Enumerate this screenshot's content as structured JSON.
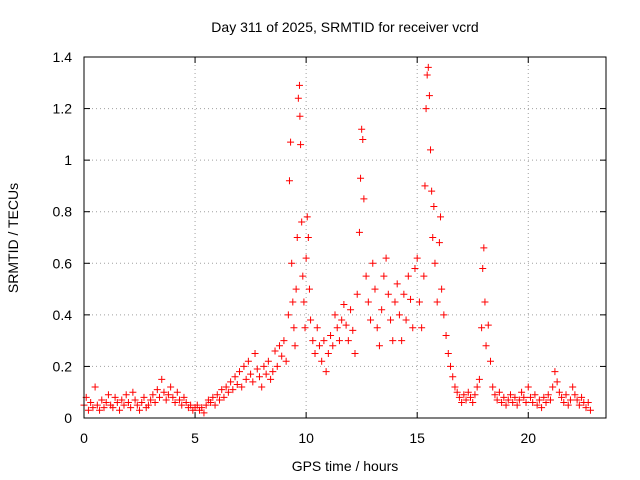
{
  "chart_data": {
    "type": "scatter",
    "title": "Day 311 of 2025, SRMTID for receiver vcrd",
    "xlabel": "GPS time / hours",
    "ylabel": "SRMTID / TECUs",
    "xlim": [
      0,
      23.5
    ],
    "ylim": [
      0,
      1.4
    ],
    "grid": true,
    "marker": "+",
    "color": "#ff0000",
    "x_ticks": [
      0,
      5,
      10,
      15,
      20
    ],
    "x_tick_labels": [
      "0",
      "5",
      "10",
      "15",
      "20"
    ],
    "y_ticks": [
      0,
      0.2,
      0.4,
      0.6,
      0.8,
      1.0,
      1.2,
      1.4
    ],
    "y_tick_labels": [
      "0",
      "0.2",
      "0.4",
      "0.6",
      "0.8",
      "1",
      "1.2",
      "1.4"
    ],
    "series": [
      {
        "name": "SRMTID",
        "points": [
          [
            0.0,
            0.05
          ],
          [
            0.1,
            0.08
          ],
          [
            0.2,
            0.03
          ],
          [
            0.3,
            0.06
          ],
          [
            0.4,
            0.04
          ],
          [
            0.5,
            0.12
          ],
          [
            0.6,
            0.05
          ],
          [
            0.7,
            0.03
          ],
          [
            0.8,
            0.07
          ],
          [
            0.9,
            0.04
          ],
          [
            1.0,
            0.06
          ],
          [
            1.1,
            0.09
          ],
          [
            1.2,
            0.05
          ],
          [
            1.3,
            0.04
          ],
          [
            1.4,
            0.08
          ],
          [
            1.5,
            0.06
          ],
          [
            1.6,
            0.03
          ],
          [
            1.7,
            0.07
          ],
          [
            1.8,
            0.05
          ],
          [
            1.9,
            0.09
          ],
          [
            2.0,
            0.06
          ],
          [
            2.1,
            0.04
          ],
          [
            2.2,
            0.1
          ],
          [
            2.3,
            0.07
          ],
          [
            2.4,
            0.05
          ],
          [
            2.5,
            0.03
          ],
          [
            2.6,
            0.06
          ],
          [
            2.7,
            0.08
          ],
          [
            2.8,
            0.04
          ],
          [
            2.9,
            0.05
          ],
          [
            3.0,
            0.07
          ],
          [
            3.1,
            0.09
          ],
          [
            3.2,
            0.06
          ],
          [
            3.3,
            0.11
          ],
          [
            3.4,
            0.08
          ],
          [
            3.5,
            0.15
          ],
          [
            3.6,
            0.1
          ],
          [
            3.7,
            0.07
          ],
          [
            3.8,
            0.09
          ],
          [
            3.9,
            0.12
          ],
          [
            4.0,
            0.08
          ],
          [
            4.1,
            0.06
          ],
          [
            4.2,
            0.1
          ],
          [
            4.3,
            0.07
          ],
          [
            4.4,
            0.05
          ],
          [
            4.5,
            0.08
          ],
          [
            4.6,
            0.06
          ],
          [
            4.7,
            0.04
          ],
          [
            4.8,
            0.05
          ],
          [
            4.9,
            0.03
          ],
          [
            5.0,
            0.04
          ],
          [
            5.1,
            0.05
          ],
          [
            5.2,
            0.03
          ],
          [
            5.3,
            0.04
          ],
          [
            5.4,
            0.02
          ],
          [
            5.5,
            0.05
          ],
          [
            5.6,
            0.07
          ],
          [
            5.7,
            0.06
          ],
          [
            5.8,
            0.08
          ],
          [
            5.9,
            0.05
          ],
          [
            6.0,
            0.09
          ],
          [
            6.1,
            0.07
          ],
          [
            6.2,
            0.11
          ],
          [
            6.3,
            0.08
          ],
          [
            6.4,
            0.12
          ],
          [
            6.5,
            0.1
          ],
          [
            6.6,
            0.14
          ],
          [
            6.7,
            0.11
          ],
          [
            6.8,
            0.16
          ],
          [
            6.9,
            0.13
          ],
          [
            7.0,
            0.18
          ],
          [
            7.1,
            0.12
          ],
          [
            7.2,
            0.2
          ],
          [
            7.3,
            0.15
          ],
          [
            7.4,
            0.22
          ],
          [
            7.5,
            0.17
          ],
          [
            7.6,
            0.14
          ],
          [
            7.7,
            0.25
          ],
          [
            7.8,
            0.19
          ],
          [
            7.9,
            0.16
          ],
          [
            8.0,
            0.12
          ],
          [
            8.1,
            0.2
          ],
          [
            8.2,
            0.17
          ],
          [
            8.3,
            0.22
          ],
          [
            8.4,
            0.15
          ],
          [
            8.5,
            0.18
          ],
          [
            8.6,
            0.26
          ],
          [
            8.7,
            0.2
          ],
          [
            8.8,
            0.28
          ],
          [
            8.9,
            0.24
          ],
          [
            9.0,
            0.3
          ],
          [
            9.1,
            0.22
          ],
          [
            9.2,
            0.4
          ],
          [
            9.25,
            0.92
          ],
          [
            9.3,
            1.07
          ],
          [
            9.35,
            0.6
          ],
          [
            9.4,
            0.45
          ],
          [
            9.45,
            0.35
          ],
          [
            9.5,
            0.28
          ],
          [
            9.55,
            0.5
          ],
          [
            9.6,
            0.7
          ],
          [
            9.65,
            1.24
          ],
          [
            9.7,
            1.29
          ],
          [
            9.72,
            1.17
          ],
          [
            9.75,
            1.06
          ],
          [
            9.8,
            0.76
          ],
          [
            9.85,
            0.55
          ],
          [
            9.9,
            0.45
          ],
          [
            9.95,
            0.35
          ],
          [
            10.0,
            0.62
          ],
          [
            10.05,
            0.78
          ],
          [
            10.1,
            0.7
          ],
          [
            10.15,
            0.5
          ],
          [
            10.2,
            0.38
          ],
          [
            10.3,
            0.3
          ],
          [
            10.4,
            0.25
          ],
          [
            10.5,
            0.35
          ],
          [
            10.6,
            0.28
          ],
          [
            10.7,
            0.22
          ],
          [
            10.8,
            0.3
          ],
          [
            10.9,
            0.18
          ],
          [
            11.0,
            0.25
          ],
          [
            11.1,
            0.32
          ],
          [
            11.2,
            0.28
          ],
          [
            11.3,
            0.4
          ],
          [
            11.4,
            0.35
          ],
          [
            11.5,
            0.3
          ],
          [
            11.6,
            0.38
          ],
          [
            11.7,
            0.44
          ],
          [
            11.8,
            0.36
          ],
          [
            11.9,
            0.3
          ],
          [
            12.0,
            0.42
          ],
          [
            12.1,
            0.34
          ],
          [
            12.2,
            0.25
          ],
          [
            12.3,
            0.48
          ],
          [
            12.4,
            0.72
          ],
          [
            12.45,
            0.93
          ],
          [
            12.5,
            1.12
          ],
          [
            12.55,
            1.08
          ],
          [
            12.6,
            0.85
          ],
          [
            12.7,
            0.55
          ],
          [
            12.8,
            0.45
          ],
          [
            12.9,
            0.38
          ],
          [
            13.0,
            0.6
          ],
          [
            13.1,
            0.5
          ],
          [
            13.2,
            0.35
          ],
          [
            13.3,
            0.28
          ],
          [
            13.4,
            0.42
          ],
          [
            13.5,
            0.55
          ],
          [
            13.6,
            0.62
          ],
          [
            13.7,
            0.48
          ],
          [
            13.8,
            0.38
          ],
          [
            13.9,
            0.3
          ],
          [
            14.0,
            0.45
          ],
          [
            14.1,
            0.52
          ],
          [
            14.2,
            0.4
          ],
          [
            14.3,
            0.3
          ],
          [
            14.4,
            0.48
          ],
          [
            14.5,
            0.38
          ],
          [
            14.6,
            0.55
          ],
          [
            14.7,
            0.46
          ],
          [
            14.8,
            0.35
          ],
          [
            14.9,
            0.58
          ],
          [
            15.0,
            0.62
          ],
          [
            15.1,
            0.45
          ],
          [
            15.2,
            0.35
          ],
          [
            15.3,
            0.55
          ],
          [
            15.35,
            0.9
          ],
          [
            15.4,
            1.2
          ],
          [
            15.45,
            1.33
          ],
          [
            15.5,
            1.36
          ],
          [
            15.55,
            1.25
          ],
          [
            15.6,
            1.04
          ],
          [
            15.65,
            0.88
          ],
          [
            15.7,
            0.7
          ],
          [
            15.75,
            0.82
          ],
          [
            15.8,
            0.6
          ],
          [
            15.9,
            0.45
          ],
          [
            16.0,
            0.68
          ],
          [
            16.05,
            0.78
          ],
          [
            16.1,
            0.5
          ],
          [
            16.2,
            0.4
          ],
          [
            16.3,
            0.32
          ],
          [
            16.4,
            0.25
          ],
          [
            16.5,
            0.2
          ],
          [
            16.6,
            0.16
          ],
          [
            16.7,
            0.12
          ],
          [
            16.8,
            0.1
          ],
          [
            16.9,
            0.08
          ],
          [
            17.0,
            0.06
          ],
          [
            17.1,
            0.09
          ],
          [
            17.2,
            0.07
          ],
          [
            17.3,
            0.1
          ],
          [
            17.4,
            0.08
          ],
          [
            17.5,
            0.06
          ],
          [
            17.6,
            0.09
          ],
          [
            17.7,
            0.12
          ],
          [
            17.8,
            0.15
          ],
          [
            17.9,
            0.35
          ],
          [
            17.95,
            0.58
          ],
          [
            18.0,
            0.66
          ],
          [
            18.05,
            0.45
          ],
          [
            18.1,
            0.28
          ],
          [
            18.2,
            0.36
          ],
          [
            18.3,
            0.22
          ],
          [
            18.4,
            0.12
          ],
          [
            18.5,
            0.09
          ],
          [
            18.6,
            0.07
          ],
          [
            18.7,
            0.1
          ],
          [
            18.8,
            0.06
          ],
          [
            18.9,
            0.08
          ],
          [
            19.0,
            0.05
          ],
          [
            19.1,
            0.07
          ],
          [
            19.2,
            0.09
          ],
          [
            19.3,
            0.06
          ],
          [
            19.4,
            0.08
          ],
          [
            19.5,
            0.05
          ],
          [
            19.6,
            0.07
          ],
          [
            19.7,
            0.1
          ],
          [
            19.8,
            0.08
          ],
          [
            19.9,
            0.06
          ],
          [
            20.0,
            0.12
          ],
          [
            20.1,
            0.08
          ],
          [
            20.2,
            0.06
          ],
          [
            20.3,
            0.09
          ],
          [
            20.4,
            0.05
          ],
          [
            20.5,
            0.07
          ],
          [
            20.6,
            0.04
          ],
          [
            20.7,
            0.08
          ],
          [
            20.8,
            0.06
          ],
          [
            20.9,
            0.09
          ],
          [
            21.0,
            0.07
          ],
          [
            21.1,
            0.12
          ],
          [
            21.2,
            0.18
          ],
          [
            21.3,
            0.14
          ],
          [
            21.4,
            0.1
          ],
          [
            21.5,
            0.08
          ],
          [
            21.6,
            0.06
          ],
          [
            21.7,
            0.09
          ],
          [
            21.8,
            0.05
          ],
          [
            21.9,
            0.07
          ],
          [
            22.0,
            0.12
          ],
          [
            22.1,
            0.09
          ],
          [
            22.2,
            0.07
          ],
          [
            22.3,
            0.05
          ],
          [
            22.4,
            0.08
          ],
          [
            22.5,
            0.06
          ],
          [
            22.6,
            0.04
          ],
          [
            22.7,
            0.06
          ],
          [
            22.8,
            0.03
          ]
        ]
      }
    ]
  }
}
